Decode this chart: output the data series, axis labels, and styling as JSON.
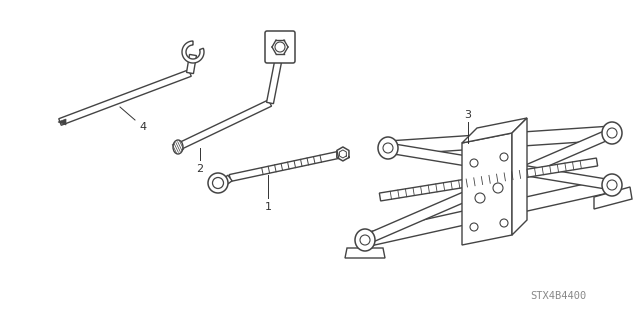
{
  "background_color": "#ffffff",
  "line_color": "#444444",
  "text_color": "#333333",
  "watermark": "STX4B4400",
  "watermark_fontsize": 7.5,
  "fig_width": 6.4,
  "fig_height": 3.19,
  "dpi": 100
}
